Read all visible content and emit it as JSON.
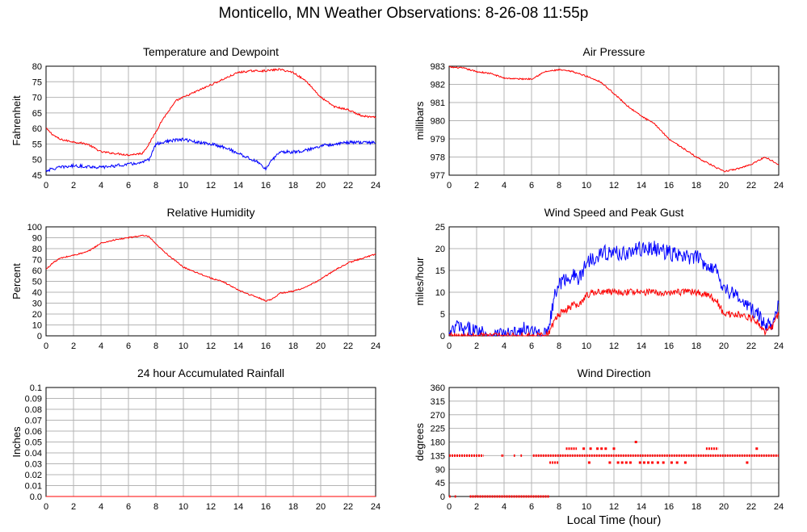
{
  "page_title": "Monticello, MN Weather Observations: 8-26-08 11:55p",
  "x_axis_label": "Local Time (hour)",
  "chart_data": [
    {
      "id": "temp",
      "type": "line",
      "title": "Temperature and Dewpoint",
      "ylabel": "Fahrenheit",
      "xlim": [
        0,
        24
      ],
      "ylim": [
        45,
        80
      ],
      "xticks": [
        0,
        2,
        4,
        6,
        8,
        10,
        12,
        14,
        16,
        18,
        20,
        22,
        24
      ],
      "yticks": [
        45,
        50,
        55,
        60,
        65,
        70,
        75,
        80
      ],
      "grid": true,
      "series": [
        {
          "color": "#ff0000",
          "x": [
            0,
            0.5,
            1,
            2,
            3,
            4,
            5,
            6,
            7,
            7.5,
            8,
            8.5,
            9,
            9.5,
            10,
            11,
            12,
            13,
            14,
            15,
            16,
            17,
            18,
            19,
            20,
            21,
            22,
            23,
            24
          ],
          "y": [
            60,
            58,
            56.5,
            55.7,
            55,
            52.5,
            52,
            51.5,
            52,
            55,
            59,
            63,
            66,
            69,
            70,
            72,
            74,
            76,
            78,
            78.5,
            78.5,
            79,
            78,
            75,
            70,
            67,
            66,
            64,
            63.5
          ],
          "noise": 0.3
        },
        {
          "color": "#0000ff",
          "x": [
            0,
            1,
            2,
            3,
            4,
            5,
            6,
            7,
            7.5,
            8,
            9,
            10,
            11,
            12,
            13,
            14,
            15,
            15.5,
            16,
            16.5,
            17,
            18,
            19,
            20,
            21,
            22,
            23,
            24
          ],
          "y": [
            46.5,
            47.5,
            48,
            47.8,
            47.5,
            48,
            48.5,
            49,
            50,
            55,
            56,
            56.5,
            55.5,
            55,
            54,
            52,
            50,
            49,
            47,
            50,
            52.5,
            52.5,
            53,
            54.5,
            55,
            55.5,
            55.5,
            55.5
          ],
          "noise": 0.5
        }
      ]
    },
    {
      "id": "pressure",
      "type": "line",
      "title": "Air Pressure",
      "ylabel": "millibars",
      "xlim": [
        0,
        24
      ],
      "ylim": [
        977,
        983
      ],
      "xticks": [
        0,
        2,
        4,
        6,
        8,
        10,
        12,
        14,
        16,
        18,
        20,
        22,
        24
      ],
      "yticks": [
        977,
        978,
        979,
        980,
        981,
        982,
        983
      ],
      "grid": true,
      "series": [
        {
          "color": "#ff0000",
          "x": [
            0,
            1,
            2,
            3,
            4,
            5,
            6,
            7,
            8,
            9,
            10,
            11,
            12,
            13,
            14,
            15,
            16,
            17,
            18,
            19,
            20,
            21,
            22,
            23,
            24
          ],
          "y": [
            982.95,
            982.9,
            982.7,
            982.6,
            982.35,
            982.3,
            982.3,
            982.7,
            982.8,
            982.7,
            982.45,
            982.15,
            981.5,
            980.8,
            980.25,
            979.8,
            979.0,
            978.5,
            978.0,
            977.6,
            977.2,
            977.35,
            977.6,
            978.0,
            977.6
          ],
          "noise": 0.04
        }
      ]
    },
    {
      "id": "humidity",
      "type": "line",
      "title": "Relative Humidity",
      "ylabel": "Percent",
      "xlim": [
        0,
        24
      ],
      "ylim": [
        0,
        100
      ],
      "xticks": [
        0,
        2,
        4,
        6,
        8,
        10,
        12,
        14,
        16,
        18,
        20,
        22,
        24
      ],
      "yticks": [
        0,
        10,
        20,
        30,
        40,
        50,
        60,
        70,
        80,
        90,
        100
      ],
      "grid": true,
      "series": [
        {
          "color": "#ff0000",
          "x": [
            0,
            0.5,
            1,
            2,
            3,
            4,
            5,
            6,
            7,
            7.5,
            8,
            9,
            10,
            11,
            12,
            13,
            14,
            15,
            15.5,
            16,
            16.5,
            17,
            18,
            19,
            20,
            21,
            22,
            23,
            24
          ],
          "y": [
            61,
            67,
            71,
            74,
            77,
            85,
            88,
            90,
            92,
            91,
            84,
            73,
            63,
            58,
            53,
            49,
            42,
            37,
            35,
            32,
            34,
            39,
            41,
            45,
            52,
            60,
            67,
            71,
            75
          ],
          "noise": 0.6
        }
      ]
    },
    {
      "id": "wind",
      "type": "line",
      "title": "Wind Speed and Peak Gust",
      "ylabel": "miles/hour",
      "xlim": [
        0,
        24
      ],
      "ylim": [
        0,
        25
      ],
      "xticks": [
        0,
        2,
        4,
        6,
        8,
        10,
        12,
        14,
        16,
        18,
        20,
        22,
        24
      ],
      "yticks": [
        0,
        5,
        10,
        15,
        20,
        25
      ],
      "grid": true,
      "series": [
        {
          "color": "#0000ff",
          "x": [
            0,
            0.3,
            0.6,
            1,
            1.5,
            2,
            2.5,
            3,
            3.5,
            3.8,
            4,
            5,
            5.5,
            6,
            6.5,
            7,
            7.3,
            7.6,
            8,
            8.5,
            9,
            9.5,
            10,
            11,
            12,
            13,
            14,
            15,
            16,
            17,
            18,
            19,
            19.5,
            20,
            21,
            22,
            22.5,
            23,
            23.5,
            24
          ],
          "y": [
            0,
            1,
            2.5,
            1,
            1.5,
            1,
            1,
            0,
            0,
            1,
            0,
            0.5,
            1.5,
            0.5,
            1,
            0,
            3,
            8,
            12,
            13,
            14,
            13,
            17,
            19,
            19,
            19,
            20,
            20,
            19,
            18,
            18,
            16,
            15,
            11,
            9,
            6,
            5,
            2,
            3,
            8
          ],
          "noise": 1.8
        },
        {
          "color": "#ff0000",
          "x": [
            0,
            3.5,
            4,
            5,
            6,
            7,
            7.3,
            7.6,
            8,
            8.5,
            9,
            9.5,
            10,
            11,
            12,
            13,
            14,
            15,
            16,
            17,
            18,
            19,
            19.5,
            20,
            21,
            22,
            22.5,
            23,
            23.5,
            24
          ],
          "y": [
            0,
            0,
            0,
            0,
            0,
            0,
            1,
            3,
            5,
            6,
            7,
            7,
            9.5,
            10,
            10,
            10,
            10,
            10,
            10,
            10,
            10,
            9,
            8,
            5,
            5,
            4,
            3,
            1,
            2,
            5
          ],
          "noise": 0.8
        }
      ]
    },
    {
      "id": "rain",
      "type": "line",
      "title": "24 hour Accumulated Rainfall",
      "ylabel": "Inches",
      "xlim": [
        0,
        24
      ],
      "ylim": [
        0,
        0.1
      ],
      "xticks": [
        0,
        2,
        4,
        6,
        8,
        10,
        12,
        14,
        16,
        18,
        20,
        22,
        24
      ],
      "yticks": [
        0.0,
        0.01,
        0.02,
        0.03,
        0.04,
        0.05,
        0.06,
        0.07,
        0.08,
        0.09,
        0.1
      ],
      "ytick_labels": [
        "0.0",
        "0.01",
        "0.02",
        "0.03",
        "0.04",
        "0.05",
        "0.06",
        "0.07",
        "0.08",
        "0.09",
        "0.1"
      ],
      "grid": true,
      "series": [
        {
          "color": "#ff0000",
          "x": [
            0,
            24
          ],
          "y": [
            0,
            0
          ],
          "noise": 0
        }
      ]
    },
    {
      "id": "direction",
      "type": "scatter",
      "title": "Wind Direction",
      "ylabel": "degrees",
      "xlim": [
        0,
        24
      ],
      "ylim": [
        0,
        360
      ],
      "xticks": [
        0,
        2,
        4,
        6,
        8,
        10,
        12,
        14,
        16,
        18,
        20,
        22,
        24
      ],
      "yticks": [
        0,
        45,
        90,
        135,
        180,
        225,
        270,
        315,
        360
      ],
      "grid": true,
      "series": [
        {
          "color": "#ff0000",
          "bands": [
            {
              "y": 135,
              "from": 0,
              "to": 2.5
            },
            {
              "y": 135,
              "from": 3.8,
              "to": 4.0
            },
            {
              "y": 135,
              "from": 4.7,
              "to": 4.8
            },
            {
              "y": 135,
              "from": 5.2,
              "to": 5.3
            },
            {
              "y": 135,
              "from": 6.1,
              "to": 24
            },
            {
              "y": 0,
              "from": 1.5,
              "to": 7.3
            },
            {
              "y": 0,
              "from": 0,
              "to": 0.1
            },
            {
              "y": 0,
              "from": 0.4,
              "to": 0.5
            },
            {
              "y": 112,
              "from": 7.3,
              "to": 8.0
            },
            {
              "y": 158,
              "from": 8.5,
              "to": 9.3
            },
            {
              "y": 158,
              "from": 18.7,
              "to": 19.6
            }
          ],
          "points": [
            [
              9.8,
              158
            ],
            [
              10.3,
              158
            ],
            [
              10.8,
              158
            ],
            [
              11.1,
              158
            ],
            [
              11.4,
              158
            ],
            [
              12,
              158
            ],
            [
              13.6,
              180
            ],
            [
              10.2,
              112
            ],
            [
              11.7,
              112
            ],
            [
              12.3,
              112
            ],
            [
              12.6,
              112
            ],
            [
              12.9,
              112
            ],
            [
              13.2,
              112
            ],
            [
              13.9,
              112
            ],
            [
              14.2,
              112
            ],
            [
              14.5,
              112
            ],
            [
              14.8,
              112
            ],
            [
              15.2,
              112
            ],
            [
              15.6,
              112
            ],
            [
              16.2,
              112
            ],
            [
              16.6,
              112
            ],
            [
              17.2,
              112
            ],
            [
              21.7,
              112
            ],
            [
              22.4,
              158
            ]
          ]
        }
      ]
    }
  ]
}
